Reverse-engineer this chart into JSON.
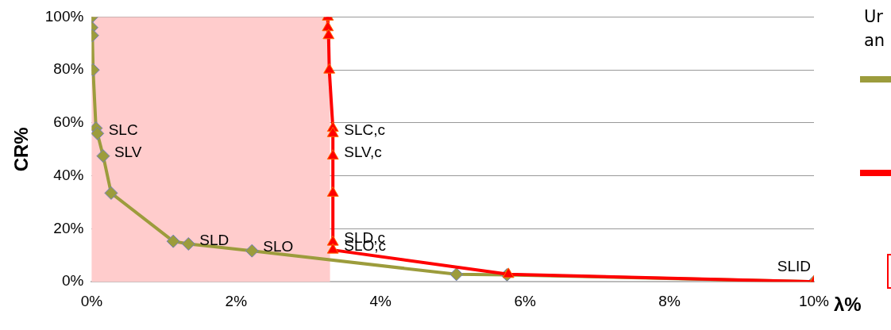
{
  "chart_data": {
    "type": "line",
    "xlabel": "λ%",
    "ylabel": "CR%",
    "legend_title": "Ur an",
    "grid": "y",
    "xlim": [
      0,
      10
    ],
    "xticks": [
      {
        "value": 0,
        "label": "0%"
      },
      {
        "value": 2,
        "label": "2%"
      },
      {
        "value": 4,
        "label": "4%"
      },
      {
        "value": 6,
        "label": "6%"
      },
      {
        "value": 8,
        "label": "8%"
      },
      {
        "value": 10,
        "label": "10%"
      }
    ],
    "ylim": [
      0,
      100
    ],
    "yticks": [
      {
        "value": 0,
        "label": "0%"
      },
      {
        "value": 20,
        "label": "20%"
      },
      {
        "value": 40,
        "label": "40%"
      },
      {
        "value": 60,
        "label": "60%"
      },
      {
        "value": 80,
        "label": "80%"
      },
      {
        "value": 100,
        "label": "100%"
      }
    ],
    "bands": [
      {
        "axis": "x",
        "from": 0,
        "to": 3.3,
        "color": "#ffcccc"
      }
    ],
    "series": [
      {
        "color": "#9c9c3c",
        "marker": "diamond",
        "x": [
          0,
          0,
          0.01,
          0.02,
          0.06,
          0.08,
          0.16,
          0.27,
          1.13,
          1.34,
          2.22,
          5.05,
          5.75,
          10
        ],
        "values": [
          100,
          96,
          93,
          80,
          58,
          56,
          47.5,
          33.5,
          15.3,
          14.3,
          11.7,
          2.8,
          2.6,
          0
        ],
        "value_labels": [
          null,
          null,
          null,
          null,
          null,
          "SLC",
          "SLV",
          null,
          null,
          "SLD",
          "SLO",
          null,
          null,
          "SLID"
        ]
      },
      {
        "color": "#ff0000",
        "marker": "triangle",
        "x": [
          3.27,
          3.27,
          3.28,
          3.29,
          3.34,
          3.34,
          3.34,
          3.34,
          3.34,
          3.34,
          5.77,
          10
        ],
        "values": [
          100,
          96,
          93,
          80,
          58,
          56,
          47.5,
          33.5,
          15,
          12,
          2.8,
          0
        ],
        "value_labels": [
          null,
          null,
          null,
          null,
          null,
          "SLC,c",
          "SLV,c",
          null,
          "SLD,c",
          "SLO,c",
          null,
          null
        ]
      }
    ]
  }
}
